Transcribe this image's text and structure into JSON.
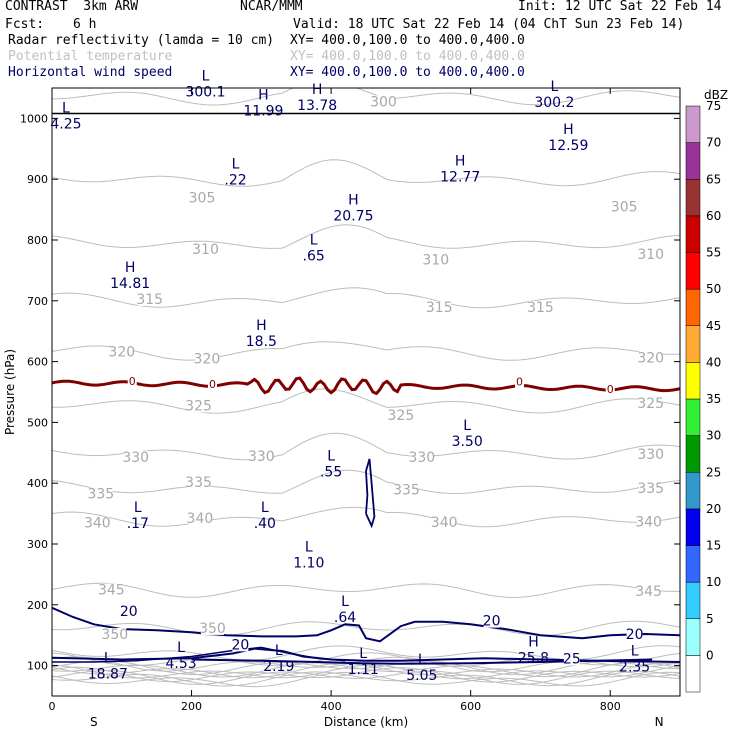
{
  "header": {
    "model": "CONTRAST  3km ARW",
    "org": "NCAR/MMM",
    "init": "Init: 12 UTC Sat 22 Feb 14",
    "fcst_label": "Fcst:",
    "fcst_value": "6 h",
    "valid": "Valid: 18 UTC Sat 22 Feb 14 (04 ChT Sun 23 Feb 14)",
    "fields": [
      {
        "name": "Radar reflectivity (lamda = 10 cm)",
        "xy": "XY= 400.0,100.0 to 400.0,400.0",
        "color": "#000000"
      },
      {
        "name": "Potential temperature",
        "xy": "XY= 400.0,100.0 to 400.0,400.0",
        "color": "#c0c0c0"
      },
      {
        "name": "Horizontal wind speed",
        "xy": "XY= 400.0,100.0 to 400.0,400.0",
        "color": "#000066"
      }
    ]
  },
  "chart_data": {
    "type": "heatmap",
    "title": "Radar reflectivity (lamda = 10 cm) cross-section",
    "xlabel": "Distance (km)",
    "ylabel": "Pressure (hPa)",
    "xlim": [
      0,
      900
    ],
    "ylim": [
      1050,
      50
    ],
    "x_ticks": [
      0,
      200,
      400,
      600,
      800
    ],
    "y_ticks": [
      100,
      200,
      300,
      400,
      500,
      600,
      700,
      800,
      900,
      1000
    ],
    "x_ends": {
      "left": "S",
      "right": "N"
    },
    "colorbar": {
      "unit": "dBZ",
      "levels": [
        0,
        5,
        10,
        15,
        20,
        25,
        30,
        35,
        40,
        45,
        50,
        55,
        60,
        65,
        70,
        75
      ],
      "colors": [
        "#ffffff",
        "#99ffff",
        "#33ccff",
        "#3366ff",
        "#0000ee",
        "#3399cc",
        "#009900",
        "#33ee33",
        "#ffff00",
        "#ffaa33",
        "#ff6600",
        "#ff0000",
        "#cc0000",
        "#993333",
        "#993399",
        "#cc99cc"
      ]
    },
    "theta_labels": [
      {
        "v": "350",
        "x": 90,
        "p": 152
      },
      {
        "v": "350",
        "x": 230,
        "p": 162
      },
      {
        "v": "345",
        "x": 85,
        "p": 225
      },
      {
        "v": "345",
        "x": 855,
        "p": 223
      },
      {
        "v": "340",
        "x": 65,
        "p": 335
      },
      {
        "v": "340",
        "x": 212,
        "p": 343
      },
      {
        "v": "340",
        "x": 562,
        "p": 336
      },
      {
        "v": "340",
        "x": 855,
        "p": 337
      },
      {
        "v": "335",
        "x": 70,
        "p": 383
      },
      {
        "v": "335",
        "x": 210,
        "p": 402
      },
      {
        "v": "335",
        "x": 508,
        "p": 390
      },
      {
        "v": "335",
        "x": 858,
        "p": 392
      },
      {
        "v": "330",
        "x": 120,
        "p": 443
      },
      {
        "v": "330",
        "x": 300,
        "p": 445
      },
      {
        "v": "330",
        "x": 530,
        "p": 443
      },
      {
        "v": "330",
        "x": 858,
        "p": 448
      },
      {
        "v": "325",
        "x": 210,
        "p": 528
      },
      {
        "v": "325",
        "x": 500,
        "p": 512
      },
      {
        "v": "325",
        "x": 858,
        "p": 532
      },
      {
        "v": "320",
        "x": 100,
        "p": 617
      },
      {
        "v": "320",
        "x": 222,
        "p": 605
      },
      {
        "v": "320",
        "x": 858,
        "p": 607
      },
      {
        "v": "315",
        "x": 140,
        "p": 703
      },
      {
        "v": "315",
        "x": 555,
        "p": 690
      },
      {
        "v": "315",
        "x": 700,
        "p": 690
      },
      {
        "v": "310",
        "x": 220,
        "p": 785
      },
      {
        "v": "310",
        "x": 550,
        "p": 768
      },
      {
        "v": "310",
        "x": 858,
        "p": 777
      },
      {
        "v": "305",
        "x": 215,
        "p": 870
      },
      {
        "v": "305",
        "x": 820,
        "p": 855
      },
      {
        "v": "300",
        "x": 475,
        "p": 1028
      }
    ],
    "wind_labels": [
      {
        "v": "20",
        "x": 110,
        "p": 190
      },
      {
        "v": "20",
        "x": 270,
        "p": 135
      },
      {
        "v": "20",
        "x": 630,
        "p": 174
      },
      {
        "v": "20",
        "x": 835,
        "p": 152
      },
      {
        "v": "25",
        "x": 745,
        "p": 112
      }
    ],
    "zero_contour": [
      {
        "v": "0",
        "x": 115,
        "p": 568
      },
      {
        "v": "0",
        "x": 230,
        "p": 563
      },
      {
        "v": "0",
        "x": 670,
        "p": 567
      },
      {
        "v": "0",
        "x": 800,
        "p": 555
      }
    ],
    "hl_markers": [
      {
        "t": "L",
        "v": "18.87",
        "x": 80,
        "p": 85
      },
      {
        "t": "L",
        "v": "4.53",
        "x": 185,
        "p": 103
      },
      {
        "t": "L",
        "v": "2.19",
        "x": 325,
        "p": 98
      },
      {
        "t": "L",
        "v": "1.11",
        "x": 446,
        "p": 93
      },
      {
        "t": "L",
        "v": "5.05",
        "x": 530,
        "p": 83
      },
      {
        "t": "H",
        "v": "25.8",
        "x": 690,
        "p": 112
      },
      {
        "t": "L",
        "v": "2.35",
        "x": 835,
        "p": 97
      },
      {
        "t": "L",
        "v": ".64",
        "x": 420,
        "p": 178
      },
      {
        "t": "L",
        "v": "1.10",
        "x": 368,
        "p": 268
      },
      {
        "t": "L",
        "v": ".17",
        "x": 123,
        "p": 333
      },
      {
        "t": "L",
        "v": ".40",
        "x": 305,
        "p": 333
      },
      {
        "t": "L",
        "v": ".55",
        "x": 400,
        "p": 418
      },
      {
        "t": "L",
        "v": "3.50",
        "x": 595,
        "p": 468
      },
      {
        "t": "H",
        "v": "18.5",
        "x": 300,
        "p": 632
      },
      {
        "t": "H",
        "v": "14.81",
        "x": 112,
        "p": 728
      },
      {
        "t": "L",
        "v": ".65",
        "x": 375,
        "p": 773
      },
      {
        "t": "H",
        "v": "20.75",
        "x": 432,
        "p": 839
      },
      {
        "t": "L",
        "v": ".22",
        "x": 263,
        "p": 898
      },
      {
        "t": "H",
        "v": "12.77",
        "x": 585,
        "p": 903
      },
      {
        "t": "H",
        "v": "12.59",
        "x": 740,
        "p": 955
      },
      {
        "t": "L",
        "v": "4.25",
        "x": 20,
        "p": 990
      },
      {
        "t": "L",
        "v": "300.1",
        "x": 220,
        "p": 1043
      },
      {
        "t": "H",
        "v": "11.99",
        "x": 303,
        "p": 1011
      },
      {
        "t": "H",
        "v": "13.78",
        "x": 380,
        "p": 1020
      },
      {
        "t": "L",
        "v": "300.2",
        "x": 720,
        "p": 1025
      }
    ]
  }
}
